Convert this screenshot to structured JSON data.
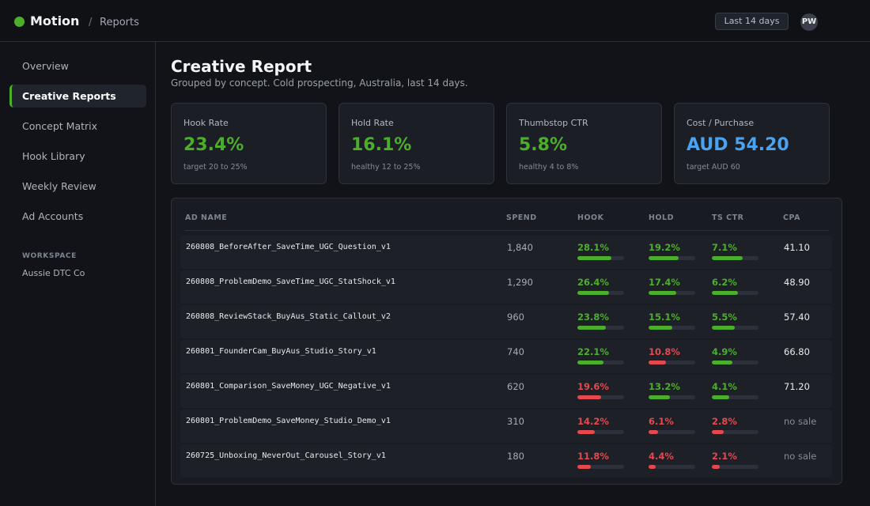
{
  "header": {
    "brand": "Motion",
    "crumb_sep": "/",
    "crumb": "Reports",
    "date_range": "Last 14 days",
    "avatar_initials": "PW"
  },
  "sidebar": {
    "items": [
      {
        "label": "Overview",
        "active": false
      },
      {
        "label": "Creative Reports",
        "active": true
      },
      {
        "label": "Concept Matrix",
        "active": false
      },
      {
        "label": "Hook Library",
        "active": false
      },
      {
        "label": "Weekly Review",
        "active": false
      },
      {
        "label": "Ad Accounts",
        "active": false
      }
    ],
    "workspace_label": "WORKSPACE",
    "workspace_name": "Aussie DTC Co"
  },
  "page": {
    "title": "Creative Report",
    "subtitle": "Grouped by concept. Cold prospecting, Australia, last 14 days."
  },
  "kpis": [
    {
      "label": "Hook Rate",
      "value": "23.4%",
      "note": "target 20 to 25%",
      "color": "#4caf2b"
    },
    {
      "label": "Hold Rate",
      "value": "16.1%",
      "note": "healthy 12 to 25%",
      "color": "#4caf2b"
    },
    {
      "label": "Thumbstop CTR",
      "value": "5.8%",
      "note": "healthy 4 to 8%",
      "color": "#4caf2b"
    },
    {
      "label": "Cost / Purchase",
      "value": "AUD 54.20",
      "note": "target AUD 60",
      "color": "#4aa3f0"
    }
  ],
  "colors": {
    "good": "#4caf2b",
    "bad": "#e5484d",
    "track": "#2b303a"
  },
  "table": {
    "columns": [
      "AD NAME",
      "SPEND",
      "HOOK",
      "HOLD",
      "TS CTR",
      "CPA"
    ],
    "rows": [
      {
        "name": "260808_BeforeAfter_SaveTime_UGC_Question_v1",
        "spend": "1,840",
        "hook": {
          "text": "28.1%",
          "fill": 0.73,
          "good": true
        },
        "hold": {
          "text": "19.2%",
          "fill": 0.64,
          "good": true
        },
        "ctr": {
          "text": "7.1%",
          "fill": 0.66,
          "good": true
        },
        "cpa": "41.10",
        "cpa_nosale": false
      },
      {
        "name": "260808_ProblemDemo_SaveTime_UGC_StatShock_v1",
        "spend": "1,290",
        "hook": {
          "text": "26.4%",
          "fill": 0.68,
          "good": true
        },
        "hold": {
          "text": "17.4%",
          "fill": 0.59,
          "good": true
        },
        "ctr": {
          "text": "6.2%",
          "fill": 0.56,
          "good": true
        },
        "cpa": "48.90",
        "cpa_nosale": false
      },
      {
        "name": "260808_ReviewStack_BuyAus_Static_Callout_v2",
        "spend": "960",
        "hook": {
          "text": "23.8%",
          "fill": 0.61,
          "good": true
        },
        "hold": {
          "text": "15.1%",
          "fill": 0.51,
          "good": true
        },
        "ctr": {
          "text": "5.5%",
          "fill": 0.49,
          "good": true
        },
        "cpa": "57.40",
        "cpa_nosale": false
      },
      {
        "name": "260801_FounderCam_BuyAus_Studio_Story_v1",
        "spend": "740",
        "hook": {
          "text": "22.1%",
          "fill": 0.56,
          "good": true
        },
        "hold": {
          "text": "10.8%",
          "fill": 0.37,
          "good": false
        },
        "ctr": {
          "text": "4.9%",
          "fill": 0.44,
          "good": true
        },
        "cpa": "66.80",
        "cpa_nosale": false
      },
      {
        "name": "260801_Comparison_SaveMoney_UGC_Negative_v1",
        "spend": "620",
        "hook": {
          "text": "19.6%",
          "fill": 0.51,
          "good": false
        },
        "hold": {
          "text": "13.2%",
          "fill": 0.46,
          "good": true
        },
        "ctr": {
          "text": "4.1%",
          "fill": 0.37,
          "good": true
        },
        "cpa": "71.20",
        "cpa_nosale": false
      },
      {
        "name": "260801_ProblemDemo_SaveMoney_Studio_Demo_v1",
        "spend": "310",
        "hook": {
          "text": "14.2%",
          "fill": 0.37,
          "good": false
        },
        "hold": {
          "text": "6.1%",
          "fill": 0.21,
          "good": false
        },
        "ctr": {
          "text": "2.8%",
          "fill": 0.25,
          "good": false
        },
        "cpa": "no sale",
        "cpa_nosale": true
      },
      {
        "name": "260725_Unboxing_NeverOut_Carousel_Story_v1",
        "spend": "180",
        "hook": {
          "text": "11.8%",
          "fill": 0.29,
          "good": false
        },
        "hold": {
          "text": "4.4%",
          "fill": 0.15,
          "good": false
        },
        "ctr": {
          "text": "2.1%",
          "fill": 0.17,
          "good": false
        },
        "cpa": "no sale",
        "cpa_nosale": true
      }
    ]
  }
}
